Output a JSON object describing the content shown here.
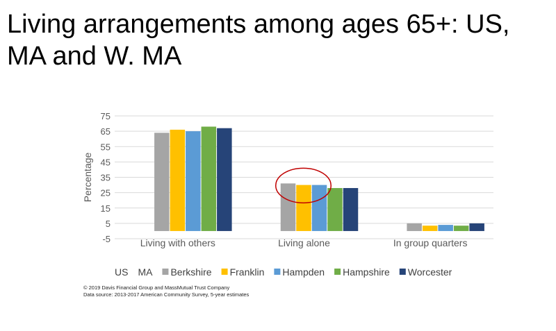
{
  "slide": {
    "title": "Living arrangements among ages 65+: US, MA and W. MA",
    "copyright": "© 2019 Davis Financial Group and MassMutual Trust Company",
    "source": "Data source: 2013-2017 American Community Survey, 5-year estimates"
  },
  "chart_data": {
    "type": "bar",
    "title": "",
    "xlabel": "",
    "ylabel": "Percentage",
    "ylim": [
      -5,
      75
    ],
    "yticks": [
      -5,
      5,
      15,
      25,
      35,
      45,
      55,
      65,
      75
    ],
    "grid": true,
    "legend_position": "bottom",
    "categories": [
      "Living with others",
      "Living alone",
      "In group quarters"
    ],
    "series": [
      {
        "name": "US",
        "color": "#4472C4",
        "values": [
          null,
          null,
          null
        ]
      },
      {
        "name": "MA",
        "color": "#ED7D31",
        "values": [
          null,
          null,
          null
        ]
      },
      {
        "name": "Berkshire",
        "color": "#A5A5A5",
        "values": [
          64,
          31,
          5
        ]
      },
      {
        "name": "Franklin",
        "color": "#FFC000",
        "values": [
          66,
          30,
          3.5
        ]
      },
      {
        "name": "Hampden",
        "color": "#5B9BD5",
        "values": [
          65,
          30,
          4
        ]
      },
      {
        "name": "Hampshire",
        "color": "#70AD47",
        "values": [
          68,
          28,
          3.5
        ]
      },
      {
        "name": "Worcester",
        "color": "#264478",
        "values": [
          67,
          28,
          5
        ]
      }
    ],
    "annotations": [
      {
        "type": "ellipse",
        "color": "#C00000",
        "category": "Living alone",
        "around_series": [
          "Berkshire",
          "Franklin",
          "Hampden"
        ]
      }
    ]
  }
}
